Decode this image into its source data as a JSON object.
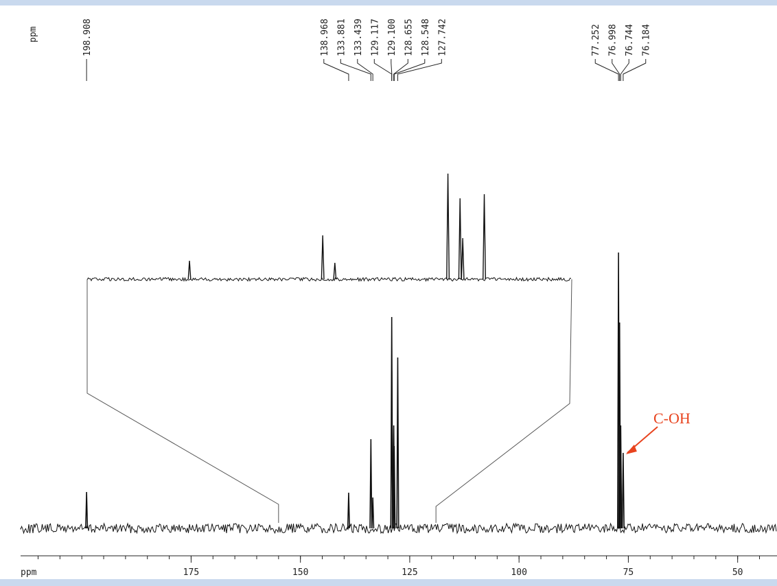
{
  "chart_data": {
    "type": "spectrum",
    "axis_label": "ppm",
    "peak_label_unit": "ppm",
    "xlim": [
      214,
      41
    ],
    "xticks": [
      175,
      150,
      125,
      100,
      75,
      50
    ],
    "ylim": [
      0,
      420
    ],
    "peaks": {
      "x": [
        198.908,
        138.968,
        133.881,
        133.439,
        129.117,
        129.1,
        128.655,
        128.548,
        127.742,
        77.252,
        76.998,
        76.744,
        76.184
      ],
      "labels": [
        "198.908",
        "138.968",
        "133.881",
        "133.439",
        "129.117",
        "129.100",
        "128.655",
        "128.548",
        "127.742",
        "77.252",
        "76.998",
        "76.744",
        "76.184"
      ],
      "heights": [
        53,
        52,
        130,
        45,
        308,
        230,
        150,
        120,
        249,
        402,
        300,
        150,
        110
      ]
    },
    "inset": {
      "xlim": [
        155,
        119
      ],
      "x": [
        147.4,
        137.5,
        136.6,
        128.2,
        127.3,
        127.1,
        125.5
      ],
      "heights": [
        27,
        64,
        24,
        154,
        118,
        60,
        124
      ]
    },
    "annotation": {
      "text": "C-OH",
      "x": 76.184
    },
    "color": "#111111",
    "annotation_color": "#e8431e"
  }
}
